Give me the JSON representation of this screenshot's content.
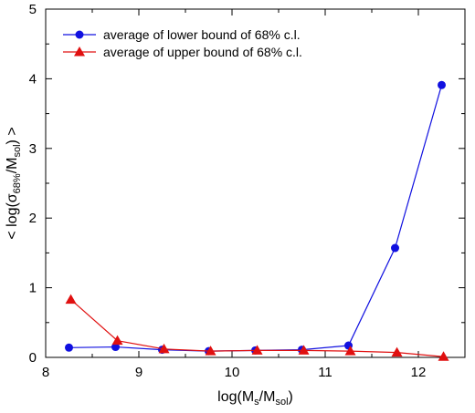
{
  "chart_data": {
    "type": "line",
    "title": "",
    "xlabel": {
      "base": "log(M",
      "sub1": "s",
      "mid": "/M",
      "sub2": "sol",
      "end": ")"
    },
    "ylabel": {
      "base": "< log(σ",
      "sub1": "68%",
      "mid": "/M",
      "sub2": "sol",
      "end": ") >"
    },
    "xlim": [
      8,
      12.5
    ],
    "ylim": [
      0,
      5
    ],
    "x_ticks": [
      "8",
      "9",
      "10",
      "11",
      "12"
    ],
    "y_ticks": [
      "0",
      "1",
      "2",
      "3",
      "4",
      "5"
    ],
    "legend_position": "top-left",
    "series": [
      {
        "name": "average of lower bound of 68% c.l.",
        "color": "#1010e0",
        "marker": "circle",
        "x": [
          8.25,
          8.75,
          9.25,
          9.75,
          10.25,
          10.75,
          11.25,
          11.75,
          12.25
        ],
        "y": [
          0.14,
          0.15,
          0.11,
          0.09,
          0.1,
          0.11,
          0.17,
          1.57,
          3.91
        ]
      },
      {
        "name": "average of upper bound of 68% c.l.",
        "color": "#e01010",
        "marker": "triangle",
        "x": [
          8.27,
          8.77,
          9.27,
          9.77,
          10.27,
          10.77,
          11.27,
          11.77,
          12.27
        ],
        "y": [
          0.83,
          0.24,
          0.12,
          0.09,
          0.1,
          0.1,
          0.09,
          0.07,
          0.01
        ]
      }
    ]
  }
}
